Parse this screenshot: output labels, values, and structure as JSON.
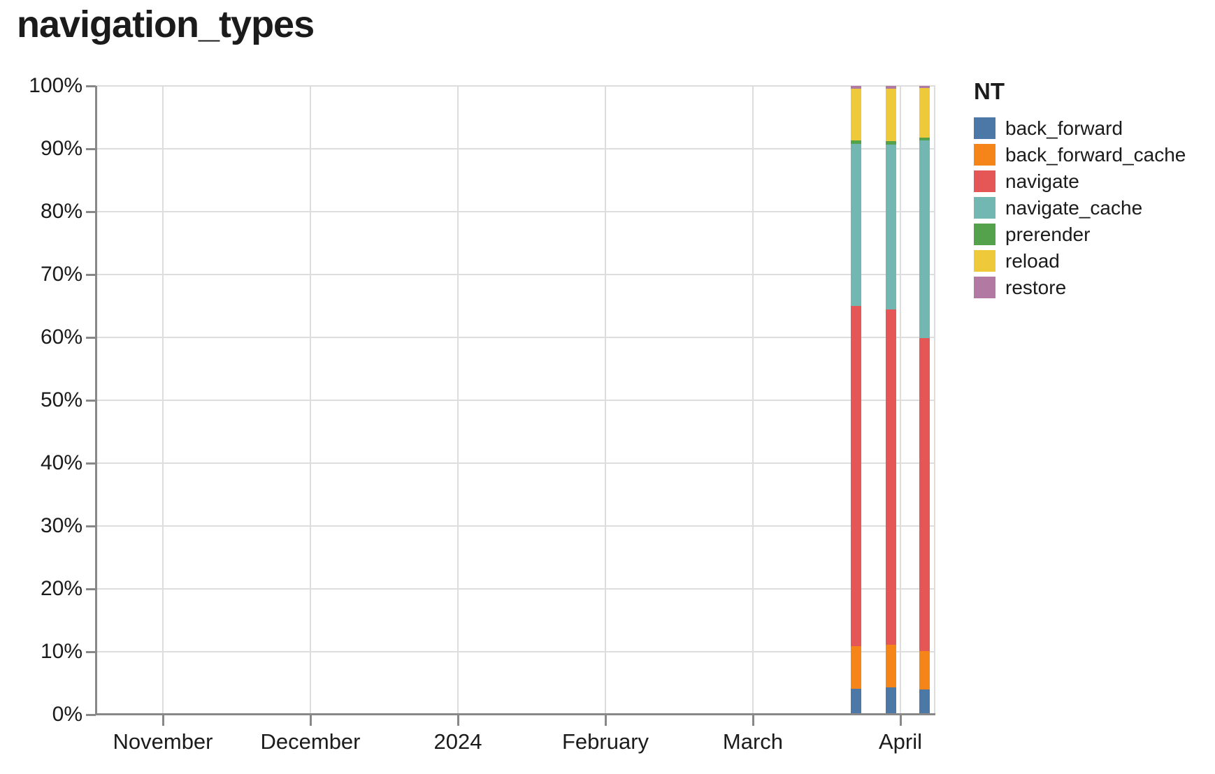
{
  "page_title": "navigation_types",
  "chart_data": {
    "type": "bar",
    "subtype": "stacked-normalized-100-percent",
    "title": "navigation_types",
    "x_axis": {
      "tick_labels": [
        "November",
        "December",
        "2024",
        "February",
        "March",
        "April"
      ],
      "range_estimate": [
        "2023-10-18",
        "2024-04-10"
      ],
      "scale": "time"
    },
    "y_axis": {
      "tick_labels": [
        "0%",
        "10%",
        "20%",
        "30%",
        "40%",
        "50%",
        "60%",
        "70%",
        "80%",
        "90%",
        "100%"
      ],
      "ylim": [
        0,
        100
      ],
      "unit": "percent",
      "grid": true
    },
    "legend": {
      "title": "NT",
      "position": "right"
    },
    "categories": [
      "2024-03-24",
      "2024-03-31",
      "2024-04-07"
    ],
    "categories_note": "weekly bars; dates estimated from axis position",
    "stack_order_bottom_to_top": [
      "back_forward",
      "back_forward_cache",
      "navigate",
      "navigate_cache",
      "prerender",
      "reload",
      "restore"
    ],
    "series": [
      {
        "name": "back_forward",
        "color": "#4c78a8",
        "values": [
          4.1,
          4.3,
          4.0
        ]
      },
      {
        "name": "back_forward_cache",
        "color": "#f58518",
        "values": [
          6.8,
          6.8,
          6.1
        ]
      },
      {
        "name": "navigate",
        "color": "#e45756",
        "values": [
          54.1,
          53.3,
          49.8
        ]
      },
      {
        "name": "navigate_cache",
        "color": "#72b7b2",
        "values": [
          25.8,
          26.3,
          31.4
        ]
      },
      {
        "name": "prerender",
        "color": "#54a24b",
        "values": [
          0.5,
          0.5,
          0.5
        ]
      },
      {
        "name": "reload",
        "color": "#eeca3b",
        "values": [
          8.3,
          8.4,
          7.9
        ]
      },
      {
        "name": "restore",
        "color": "#b279a2",
        "values": [
          0.4,
          0.4,
          0.3
        ]
      }
    ],
    "grid_color": "#dddddd",
    "axis_color": "#888888",
    "text_color": "#1b1b1b"
  }
}
